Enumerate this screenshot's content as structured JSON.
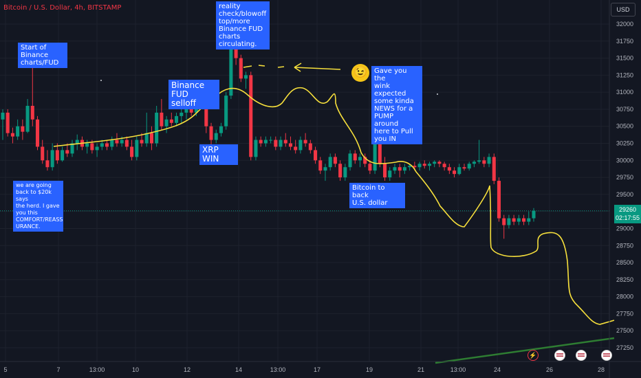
{
  "header": {
    "symbol_title": "Bitcoin / U.S. Dollar, 4h, BITSTAMP",
    "currency_button": "USD"
  },
  "price_label": {
    "price": "29260",
    "countdown": "02:17:55"
  },
  "annotations": {
    "start_binance": "Start of\nBinance\ncharts/FUD",
    "back_20k": "we are going\nback to $20k says\nthe herd. I gave\nyou this\nCOMFORT/REASS\nURANCE.",
    "binance_selloff": "Binance FUD\nselloff",
    "xrp_win": "XRP WIN",
    "reality_check": "reality\ncheck/blowoff\ntop/more\nBinance FUD\ncharts\ncirculating.",
    "wink": "Gave you the\nwink expected\nsome kinda\nNEWS for a\nPUMP around\nhere to Pull\nyou IN",
    "bitcoin_back": "Bitcoin to back\nU.S. dollar"
  },
  "icons": {
    "wink": "winking-face-icon",
    "bolt": "lightning-icon",
    "flag": "us-flag-icon"
  },
  "colors": {
    "up": "#089981",
    "down": "#f23645",
    "drawing": "#f7e03c",
    "trendline": "#2e7d32",
    "label_bg": "#2962ff"
  },
  "chart_data": {
    "type": "candlestick",
    "title": "Bitcoin / U.S. Dollar, 4h, BITSTAMP",
    "y_axis": {
      "range": [
        27000,
        32250
      ],
      "ticks": [
        27250,
        27500,
        27750,
        28000,
        28250,
        28500,
        28750,
        29000,
        29250,
        29500,
        29750,
        30000,
        30250,
        30500,
        30750,
        31000,
        31250,
        31500,
        31750,
        32000
      ],
      "currency": "USD"
    },
    "x_axis": {
      "ticks": [
        "5",
        "7",
        "13:00",
        "10",
        "12",
        "14",
        "13:00",
        "17",
        "19",
        "21",
        "13:00",
        "24",
        "26",
        "28"
      ]
    },
    "candles": [
      {
        "o": 30600,
        "h": 30750,
        "l": 30300,
        "c": 30700
      },
      {
        "o": 30700,
        "h": 30750,
        "l": 30350,
        "c": 30400
      },
      {
        "o": 30400,
        "h": 30480,
        "l": 30250,
        "c": 30350
      },
      {
        "o": 30350,
        "h": 30600,
        "l": 30300,
        "c": 30500
      },
      {
        "o": 30500,
        "h": 30600,
        "l": 30300,
        "c": 30420
      },
      {
        "o": 30420,
        "h": 30900,
        "l": 30400,
        "c": 30800
      },
      {
        "o": 30800,
        "h": 31700,
        "l": 30500,
        "c": 30600
      },
      {
        "o": 30600,
        "h": 30650,
        "l": 30150,
        "c": 30200
      },
      {
        "o": 30200,
        "h": 30300,
        "l": 29950,
        "c": 30000
      },
      {
        "o": 30000,
        "h": 30150,
        "l": 29850,
        "c": 29900
      },
      {
        "o": 29900,
        "h": 30250,
        "l": 29850,
        "c": 30150
      },
      {
        "o": 30150,
        "h": 30250,
        "l": 29950,
        "c": 30000
      },
      {
        "o": 30000,
        "h": 30200,
        "l": 29980,
        "c": 30150
      },
      {
        "o": 30150,
        "h": 30250,
        "l": 30050,
        "c": 30100
      },
      {
        "o": 30100,
        "h": 30300,
        "l": 30050,
        "c": 30250
      },
      {
        "o": 30250,
        "h": 30380,
        "l": 30150,
        "c": 30300
      },
      {
        "o": 30300,
        "h": 30350,
        "l": 30150,
        "c": 30200
      },
      {
        "o": 30200,
        "h": 30300,
        "l": 30100,
        "c": 30250
      },
      {
        "o": 30250,
        "h": 30300,
        "l": 30100,
        "c": 30150
      },
      {
        "o": 30150,
        "h": 30250,
        "l": 30050,
        "c": 30200
      },
      {
        "o": 30200,
        "h": 30300,
        "l": 30150,
        "c": 30250
      },
      {
        "o": 30250,
        "h": 30300,
        "l": 30150,
        "c": 30200
      },
      {
        "o": 30200,
        "h": 30350,
        "l": 30150,
        "c": 30300
      },
      {
        "o": 30300,
        "h": 30400,
        "l": 30200,
        "c": 30250
      },
      {
        "o": 30250,
        "h": 30350,
        "l": 30200,
        "c": 30300
      },
      {
        "o": 30300,
        "h": 30350,
        "l": 30150,
        "c": 30200
      },
      {
        "o": 30200,
        "h": 30300,
        "l": 30000,
        "c": 30050
      },
      {
        "o": 30050,
        "h": 30350,
        "l": 30000,
        "c": 30300
      },
      {
        "o": 30300,
        "h": 30400,
        "l": 30200,
        "c": 30250
      },
      {
        "o": 30250,
        "h": 30700,
        "l": 30200,
        "c": 30400
      },
      {
        "o": 30400,
        "h": 30500,
        "l": 30150,
        "c": 30250
      },
      {
        "o": 30250,
        "h": 30800,
        "l": 30200,
        "c": 30700
      },
      {
        "o": 30700,
        "h": 30900,
        "l": 30450,
        "c": 30500
      },
      {
        "o": 30500,
        "h": 30650,
        "l": 30400,
        "c": 30600
      },
      {
        "o": 30600,
        "h": 30700,
        "l": 30500,
        "c": 30550
      },
      {
        "o": 30550,
        "h": 30700,
        "l": 30500,
        "c": 30650
      },
      {
        "o": 30650,
        "h": 30750,
        "l": 30550,
        "c": 30700
      },
      {
        "o": 30700,
        "h": 30850,
        "l": 30600,
        "c": 30800
      },
      {
        "o": 30800,
        "h": 30900,
        "l": 30650,
        "c": 30700
      },
      {
        "o": 30700,
        "h": 31050,
        "l": 30650,
        "c": 30950
      },
      {
        "o": 30950,
        "h": 31050,
        "l": 30800,
        "c": 30850
      },
      {
        "o": 30850,
        "h": 30900,
        "l": 30400,
        "c": 30500
      },
      {
        "o": 30500,
        "h": 30550,
        "l": 30200,
        "c": 30300
      },
      {
        "o": 30300,
        "h": 30450,
        "l": 30250,
        "c": 30400
      },
      {
        "o": 30400,
        "h": 30550,
        "l": 30350,
        "c": 30500
      },
      {
        "o": 30500,
        "h": 31000,
        "l": 30450,
        "c": 30950
      },
      {
        "o": 30950,
        "h": 31800,
        "l": 30900,
        "c": 31650
      },
      {
        "o": 31650,
        "h": 32050,
        "l": 31400,
        "c": 31500
      },
      {
        "o": 31500,
        "h": 31550,
        "l": 31150,
        "c": 31200
      },
      {
        "o": 31200,
        "h": 31300,
        "l": 31050,
        "c": 31250
      },
      {
        "o": 31250,
        "h": 31300,
        "l": 30000,
        "c": 30050
      },
      {
        "o": 30050,
        "h": 30350,
        "l": 30000,
        "c": 30300
      },
      {
        "o": 30300,
        "h": 30350,
        "l": 30200,
        "c": 30250
      },
      {
        "o": 30250,
        "h": 30350,
        "l": 30200,
        "c": 30300
      },
      {
        "o": 30300,
        "h": 30350,
        "l": 30250,
        "c": 30300
      },
      {
        "o": 30300,
        "h": 30350,
        "l": 30150,
        "c": 30200
      },
      {
        "o": 30200,
        "h": 30350,
        "l": 30150,
        "c": 30300
      },
      {
        "o": 30300,
        "h": 30400,
        "l": 30200,
        "c": 30250
      },
      {
        "o": 30250,
        "h": 30350,
        "l": 30150,
        "c": 30200
      },
      {
        "o": 30200,
        "h": 30300,
        "l": 30100,
        "c": 30150
      },
      {
        "o": 30150,
        "h": 30350,
        "l": 30100,
        "c": 30300
      },
      {
        "o": 30300,
        "h": 30400,
        "l": 30200,
        "c": 30250
      },
      {
        "o": 30250,
        "h": 30300,
        "l": 30100,
        "c": 30150
      },
      {
        "o": 30150,
        "h": 30200,
        "l": 29950,
        "c": 30000
      },
      {
        "o": 30000,
        "h": 30050,
        "l": 29800,
        "c": 29850
      },
      {
        "o": 29850,
        "h": 29950,
        "l": 29700,
        "c": 29900
      },
      {
        "o": 29900,
        "h": 30100,
        "l": 29850,
        "c": 30050
      },
      {
        "o": 30050,
        "h": 30100,
        "l": 29900,
        "c": 29950
      },
      {
        "o": 29950,
        "h": 30000,
        "l": 29700,
        "c": 29750
      },
      {
        "o": 29750,
        "h": 29950,
        "l": 29700,
        "c": 29900
      },
      {
        "o": 29900,
        "h": 30150,
        "l": 29850,
        "c": 30100
      },
      {
        "o": 30100,
        "h": 30150,
        "l": 29950,
        "c": 30000
      },
      {
        "o": 30000,
        "h": 30100,
        "l": 29900,
        "c": 30050
      },
      {
        "o": 30050,
        "h": 30100,
        "l": 29900,
        "c": 29950
      },
      {
        "o": 29950,
        "h": 30000,
        "l": 29800,
        "c": 29850
      },
      {
        "o": 29850,
        "h": 30350,
        "l": 29800,
        "c": 30300
      },
      {
        "o": 30300,
        "h": 30450,
        "l": 29900,
        "c": 29950
      },
      {
        "o": 29950,
        "h": 30050,
        "l": 29700,
        "c": 29750
      },
      {
        "o": 29750,
        "h": 29900,
        "l": 29700,
        "c": 29850
      },
      {
        "o": 29850,
        "h": 29950,
        "l": 29800,
        "c": 29900
      },
      {
        "o": 29900,
        "h": 29950,
        "l": 29750,
        "c": 29850
      },
      {
        "o": 29850,
        "h": 29950,
        "l": 29800,
        "c": 29900
      },
      {
        "o": 29900,
        "h": 29950,
        "l": 29850,
        "c": 29920
      },
      {
        "o": 29920,
        "h": 29980,
        "l": 29850,
        "c": 29900
      },
      {
        "o": 29900,
        "h": 29980,
        "l": 29850,
        "c": 29950
      },
      {
        "o": 29950,
        "h": 30000,
        "l": 29880,
        "c": 29920
      },
      {
        "o": 29920,
        "h": 29980,
        "l": 29850,
        "c": 29950
      },
      {
        "o": 29950,
        "h": 30000,
        "l": 29900,
        "c": 29980
      },
      {
        "o": 29980,
        "h": 30000,
        "l": 29900,
        "c": 29950
      },
      {
        "o": 29950,
        "h": 29980,
        "l": 29850,
        "c": 29900
      },
      {
        "o": 29900,
        "h": 29950,
        "l": 29800,
        "c": 29850
      },
      {
        "o": 29850,
        "h": 29900,
        "l": 29750,
        "c": 29800
      },
      {
        "o": 29800,
        "h": 29950,
        "l": 29780,
        "c": 29900
      },
      {
        "o": 29900,
        "h": 29950,
        "l": 29850,
        "c": 29880
      },
      {
        "o": 29880,
        "h": 29980,
        "l": 29850,
        "c": 29950
      },
      {
        "o": 29950,
        "h": 30000,
        "l": 29900,
        "c": 29980
      },
      {
        "o": 29980,
        "h": 30300,
        "l": 29950,
        "c": 30000
      },
      {
        "o": 30000,
        "h": 30050,
        "l": 29900,
        "c": 29950
      },
      {
        "o": 29950,
        "h": 30100,
        "l": 29900,
        "c": 30050
      },
      {
        "o": 30050,
        "h": 30100,
        "l": 29650,
        "c": 29700
      },
      {
        "o": 29700,
        "h": 29750,
        "l": 29100,
        "c": 29150
      },
      {
        "o": 29150,
        "h": 29200,
        "l": 28850,
        "c": 29050
      },
      {
        "o": 29050,
        "h": 29200,
        "l": 29000,
        "c": 29150
      },
      {
        "o": 29150,
        "h": 29200,
        "l": 29050,
        "c": 29100
      },
      {
        "o": 29100,
        "h": 29200,
        "l": 29050,
        "c": 29150
      },
      {
        "o": 29150,
        "h": 29200,
        "l": 29050,
        "c": 29100
      },
      {
        "o": 29100,
        "h": 29250,
        "l": 29050,
        "c": 29150
      },
      {
        "o": 29150,
        "h": 29300,
        "l": 29100,
        "c": 29260
      }
    ]
  }
}
